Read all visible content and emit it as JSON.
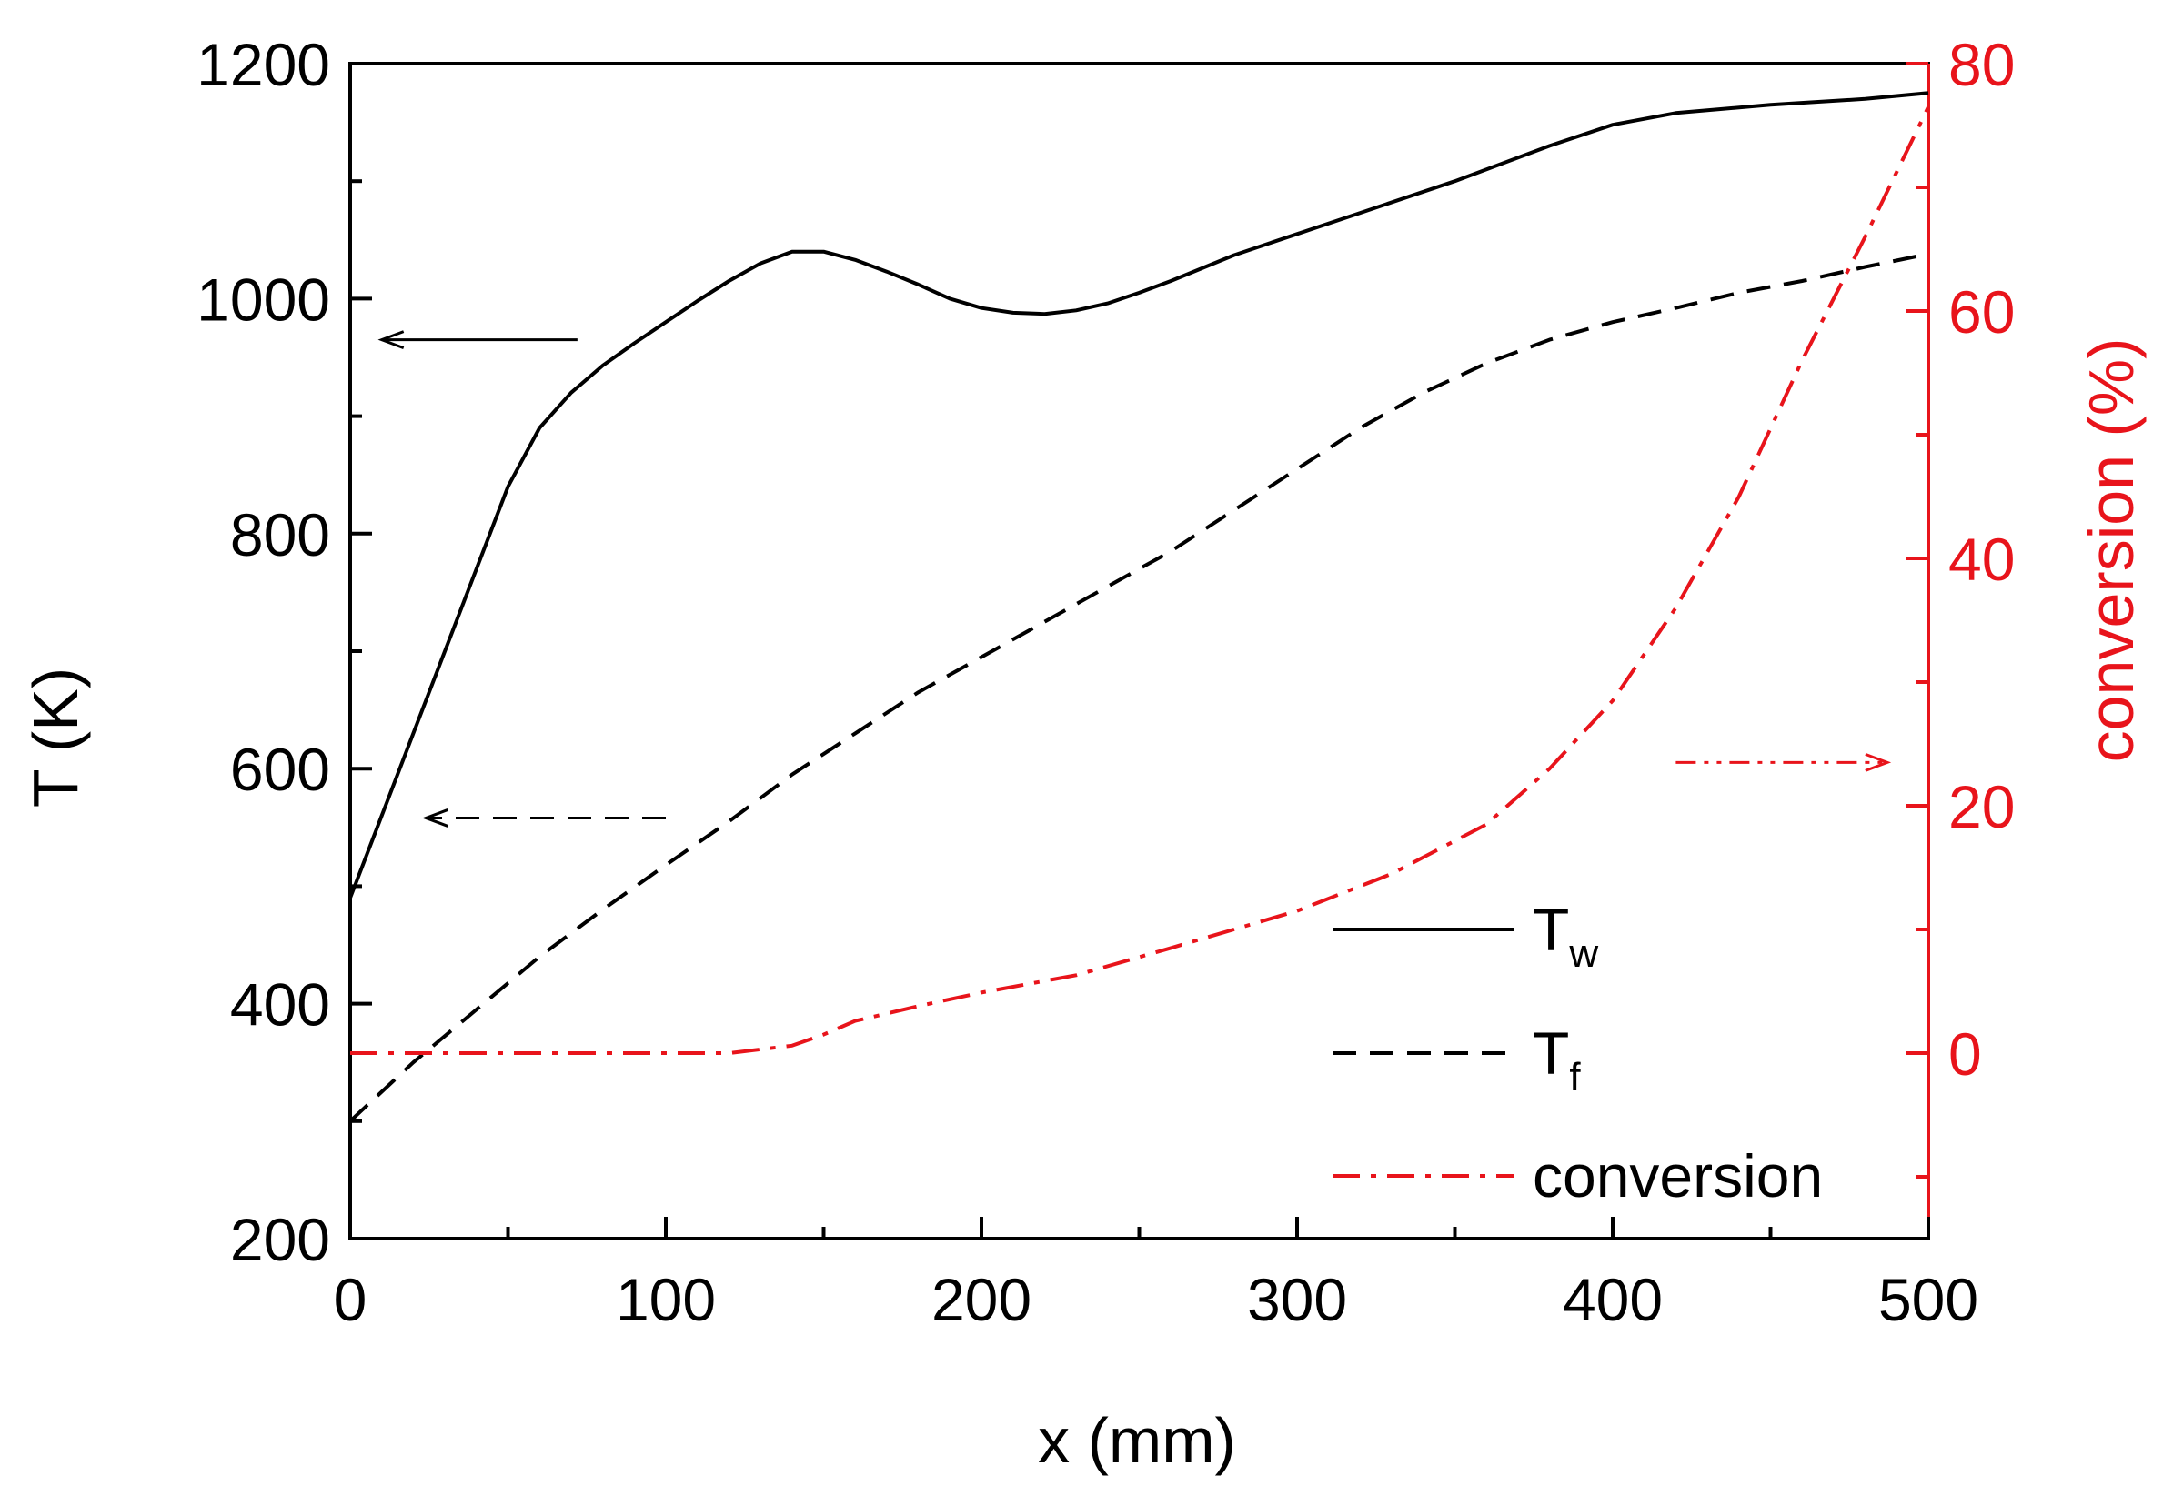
{
  "chart_data": {
    "type": "line",
    "title": "",
    "xlabel": "x (mm)",
    "ylabel_left": "T (K)",
    "ylabel_right": "conversion (%)",
    "xlim": [
      0,
      500
    ],
    "ylim_left": [
      200,
      1200
    ],
    "ylim_right": [
      -15,
      80
    ],
    "x_ticks": [
      "0",
      "100",
      "200",
      "300",
      "400",
      "500"
    ],
    "y_left_ticks": [
      "200",
      "400",
      "600",
      "800",
      "1000",
      "1200"
    ],
    "y_right_ticks": [
      "0",
      "20",
      "40",
      "60",
      "80"
    ],
    "grid": false,
    "legend_position": "bottom-right",
    "colors": {
      "axis_left": "#000000",
      "axis_right": "#e8141b",
      "Tw": "#000000",
      "Tf": "#000000",
      "conversion": "#e8141b"
    },
    "series": [
      {
        "id": "Tw",
        "name": "T",
        "subscript": "w",
        "axis": "left",
        "style": "solid",
        "x": [
          0,
          10,
          20,
          30,
          40,
          50,
          60,
          70,
          80,
          90,
          100,
          110,
          120,
          130,
          140,
          150,
          160,
          170,
          180,
          190,
          200,
          210,
          220,
          230,
          240,
          250,
          260,
          280,
          300,
          320,
          350,
          380,
          400,
          420,
          450,
          480,
          500
        ],
        "values": [
          490,
          560,
          630,
          700,
          770,
          840,
          890,
          920,
          943,
          962,
          980,
          998,
          1015,
          1030,
          1040,
          1040,
          1033,
          1023,
          1012,
          1000,
          992,
          988,
          987,
          990,
          996,
          1005,
          1015,
          1037,
          1055,
          1073,
          1100,
          1130,
          1148,
          1158,
          1165,
          1170,
          1175
        ]
      },
      {
        "id": "Tf",
        "name": "T",
        "subscript": "f",
        "axis": "left",
        "style": "dashed",
        "x": [
          0,
          20,
          40,
          60,
          80,
          100,
          120,
          140,
          160,
          180,
          200,
          220,
          240,
          260,
          280,
          300,
          320,
          340,
          360,
          380,
          400,
          420,
          440,
          460,
          480,
          500
        ],
        "values": [
          300,
          350,
          395,
          440,
          480,
          518,
          555,
          595,
          630,
          665,
          695,
          725,
          755,
          785,
          820,
          855,
          890,
          920,
          945,
          965,
          980,
          992,
          1005,
          1015,
          1027,
          1038
        ]
      },
      {
        "id": "conversion",
        "name": "conversion",
        "subscript": "",
        "axis": "right",
        "style": "dash-dot",
        "x": [
          0,
          50,
          100,
          120,
          140,
          150,
          160,
          180,
          200,
          230,
          260,
          300,
          330,
          360,
          380,
          400,
          420,
          440,
          460,
          480,
          500
        ],
        "values": [
          0,
          0,
          0,
          0,
          0.6,
          1.5,
          2.6,
          3.8,
          4.9,
          6.3,
          8.5,
          11.5,
          14.5,
          18.5,
          23,
          28.5,
          36,
          45,
          56,
          66,
          76.5
        ]
      }
    ],
    "annotations": [
      {
        "type": "arrow",
        "target_axis": "left",
        "style": "solid",
        "from": [
          72,
          965
        ],
        "to": [
          10,
          965
        ]
      },
      {
        "type": "arrow",
        "target_axis": "left",
        "style": "dashed",
        "from": [
          100,
          558
        ],
        "to": [
          24,
          558
        ]
      },
      {
        "type": "arrow",
        "target_axis": "right",
        "style": "dash-dot-dot",
        "from": [
          420,
          23.5
        ],
        "to": [
          487,
          23.5
        ]
      }
    ]
  }
}
